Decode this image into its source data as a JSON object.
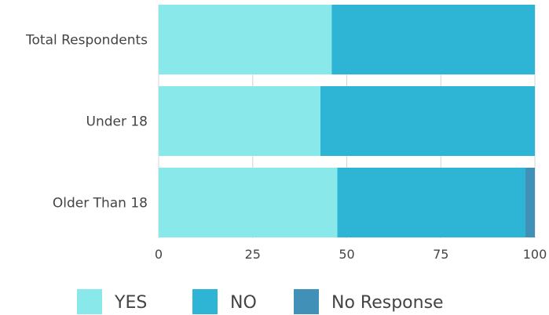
{
  "chart_data": {
    "type": "bar",
    "orientation": "horizontal",
    "stacked": true,
    "categories": [
      "Total Respondents",
      "Under 18",
      "Older Than 18"
    ],
    "series": [
      {
        "name": "YES",
        "values": [
          46,
          43,
          47.5
        ],
        "color": "#89e8e9"
      },
      {
        "name": "NO",
        "values": [
          54,
          57,
          50
        ],
        "color": "#2eb4d5"
      },
      {
        "name": "No Response",
        "values": [
          0,
          0,
          2.5
        ],
        "color": "#4190b7"
      }
    ],
    "xlim": [
      0,
      100
    ],
    "xticks": [
      "0",
      "25",
      "50",
      "75",
      "100"
    ],
    "grid": true,
    "legend_position": "bottom"
  }
}
